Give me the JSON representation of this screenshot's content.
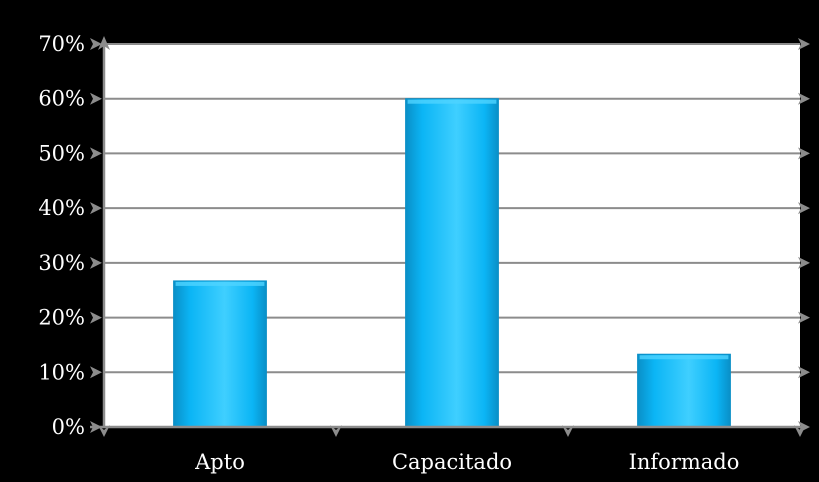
{
  "chart_data": {
    "type": "bar",
    "categories": [
      "Apto",
      "Capacitado",
      "Informado"
    ],
    "values": [
      26.7,
      60.0,
      13.3
    ],
    "y_tick_labels": [
      "0%",
      "10%",
      "20%",
      "30%",
      "40%",
      "50%",
      "60%",
      "70%"
    ],
    "ylim": [
      0,
      70
    ],
    "grid": true,
    "title": "",
    "xlabel": "",
    "ylabel": ""
  },
  "colors": {
    "background": "#000000",
    "plot_area": "#ffffff",
    "bar": "#0bb5f5",
    "bar_light": "#4fd3ff",
    "bar_dark": "#0a8fc7",
    "grid": "#8c8c8c"
  }
}
